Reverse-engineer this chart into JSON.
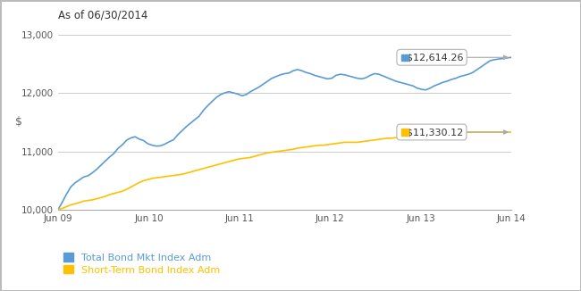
{
  "title": "As of 06/30/2014",
  "ylabel": "$",
  "ylim": [
    10000,
    13000
  ],
  "yticks": [
    10000,
    11000,
    12000,
    13000
  ],
  "ytick_labels": [
    "10,000",
    "11,000",
    "12,000",
    "13,000"
  ],
  "xtick_labels": [
    "Jun 09",
    "Jun 10",
    "Jun 11",
    "Jun 12",
    "Jun 13",
    "Jun 14"
  ],
  "blue_color": "#5B9BD5",
  "yellow_color": "#FFC000",
  "bg_color": "#FFFFFF",
  "grid_color": "#CCCCCC",
  "border_color": "#BBBBBB",
  "legend1": "Total Bond Mkt Index Adm",
  "legend2": "Short-Term Bond Index Adm",
  "label1": "$12,614.26",
  "label2": "$11,330.12",
  "blue_series": [
    10000,
    10130,
    10270,
    10390,
    10460,
    10510,
    10560,
    10580,
    10630,
    10690,
    10760,
    10830,
    10900,
    10960,
    11050,
    11110,
    11190,
    11230,
    11250,
    11210,
    11185,
    11130,
    11105,
    11090,
    11095,
    11125,
    11165,
    11200,
    11285,
    11355,
    11425,
    11485,
    11545,
    11605,
    11705,
    11785,
    11855,
    11925,
    11975,
    12005,
    12025,
    12005,
    11985,
    11955,
    11975,
    12025,
    12065,
    12105,
    12155,
    12205,
    12255,
    12285,
    12315,
    12335,
    12345,
    12385,
    12405,
    12385,
    12355,
    12335,
    12305,
    12285,
    12265,
    12245,
    12255,
    12305,
    12325,
    12315,
    12295,
    12275,
    12255,
    12245,
    12265,
    12305,
    12335,
    12325,
    12295,
    12265,
    12235,
    12205,
    12185,
    12165,
    12145,
    12125,
    12085,
    12065,
    12055,
    12085,
    12125,
    12155,
    12185,
    12205,
    12235,
    12255,
    12285,
    12305,
    12325,
    12355,
    12405,
    12455,
    12505,
    12555,
    12575,
    12585,
    12595,
    12605,
    12614
  ],
  "yellow_series": [
    10000,
    10020,
    10050,
    10080,
    10100,
    10120,
    10145,
    10155,
    10165,
    10185,
    10205,
    10225,
    10255,
    10275,
    10295,
    10315,
    10345,
    10385,
    10425,
    10465,
    10495,
    10515,
    10535,
    10545,
    10555,
    10565,
    10575,
    10585,
    10595,
    10605,
    10625,
    10645,
    10665,
    10685,
    10705,
    10725,
    10745,
    10765,
    10785,
    10805,
    10825,
    10845,
    10865,
    10875,
    10885,
    10895,
    10915,
    10935,
    10955,
    10975,
    10985,
    10995,
    11005,
    11015,
    11025,
    11035,
    11055,
    11065,
    11075,
    11085,
    11095,
    11105,
    11105,
    11115,
    11125,
    11135,
    11145,
    11155,
    11155,
    11155,
    11155,
    11165,
    11175,
    11185,
    11195,
    11205,
    11215,
    11225,
    11225,
    11235,
    11245,
    11255,
    11265,
    11265,
    11255,
    11245,
    11245,
    11245,
    11255,
    11265,
    11275,
    11285,
    11295,
    11305,
    11315,
    11325,
    11327,
    11329,
    11330,
    11330,
    11330,
    11330,
    11330,
    11330,
    11330,
    11330,
    11330
  ]
}
